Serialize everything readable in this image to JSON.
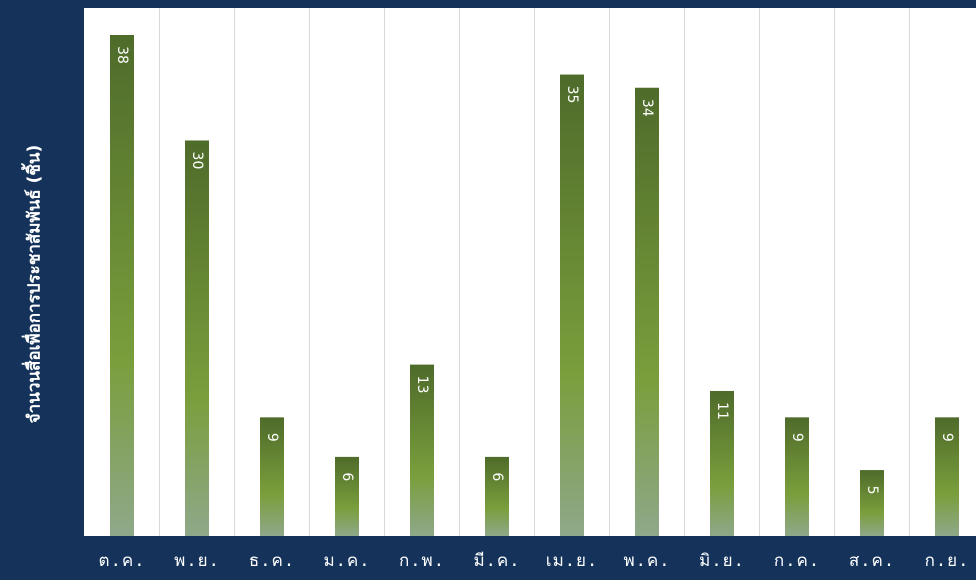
{
  "chart_data": {
    "type": "bar",
    "title": "",
    "xlabel": "",
    "ylabel": "จำนวนสื่อเพื่อการประชาสัมพันธ์ (ชิ้น)",
    "categories": [
      "ต.ค.",
      "พ.ย.",
      "ธ.ค.",
      "ม.ค.",
      "ก.พ.",
      "มี.ค.",
      "เม.ย.",
      "พ.ค.",
      "มิ.ย.",
      "ก.ค.",
      "ส.ค.",
      "ก.ย."
    ],
    "values": [
      38,
      30,
      9,
      6,
      13,
      6,
      35,
      34,
      11,
      9,
      5,
      9
    ],
    "ylim": [
      0,
      40
    ],
    "grid": "vertical",
    "colors": {
      "bar_top": "#4e6b2a",
      "bar_mid": "#7a9e3c",
      "bar_bottom": "#8fa88a",
      "background": "#14325a",
      "plot_bg": "#ffffff"
    }
  }
}
